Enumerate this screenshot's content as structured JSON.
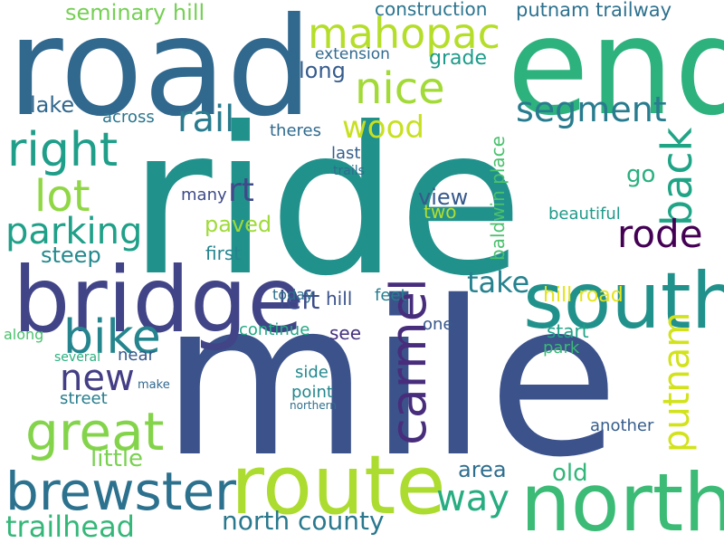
{
  "words": [
    {
      "text": "ride",
      "color": "#21918c",
      "rot": 0
    },
    {
      "text": "mile",
      "color": "#3b528b",
      "rot": 0
    },
    {
      "text": "road",
      "color": "#31688e",
      "rot": 0
    },
    {
      "text": "end",
      "color": "#2db27d",
      "rot": 0
    },
    {
      "text": "bridge",
      "color": "#414487",
      "rot": 0
    },
    {
      "text": "route",
      "color": "#addc30",
      "rot": 0
    },
    {
      "text": "north",
      "color": "#3bbb75",
      "rot": 0
    },
    {
      "text": "south",
      "color": "#21918c",
      "rot": 0
    },
    {
      "text": "brewster",
      "color": "#2c728e",
      "rot": 0
    },
    {
      "text": "carmel",
      "color": "#472d7b",
      "rot": -90
    },
    {
      "text": "great",
      "color": "#84d44b",
      "rot": 0
    },
    {
      "text": "mahopac",
      "color": "#b5de2b",
      "rot": 0
    },
    {
      "text": "nice",
      "color": "#a2da37",
      "rot": 0
    },
    {
      "text": "bike",
      "color": "#25858e",
      "rot": 0
    },
    {
      "text": "right",
      "color": "#1f9e89",
      "rot": 0
    },
    {
      "text": "lot",
      "color": "#8fd744",
      "rot": 0
    },
    {
      "text": "back",
      "color": "#20a486",
      "rot": -90
    },
    {
      "text": "putnam",
      "color": "#d2e21b",
      "rot": -90
    },
    {
      "text": "segment",
      "color": "#287c8e",
      "rot": 0
    },
    {
      "text": "way",
      "color": "#27ad81",
      "rot": 0
    },
    {
      "text": "rode",
      "color": "#440154",
      "rot": 0
    },
    {
      "text": "new",
      "color": "#433e85",
      "rot": 0
    },
    {
      "text": "rail",
      "color": "#297b8e",
      "rot": 0
    },
    {
      "text": "parking",
      "color": "#1fa088",
      "rot": 0
    },
    {
      "text": "trailhead",
      "color": "#35b779",
      "rot": 0
    },
    {
      "text": "north county",
      "color": "#2a788e",
      "rot": 0
    },
    {
      "text": "wood",
      "color": "#c8e020",
      "rot": 0
    },
    {
      "text": "take",
      "color": "#26828e",
      "rot": 0
    },
    {
      "text": "rt",
      "color": "#3e4a89",
      "rot": 0
    },
    {
      "text": "seminary hill",
      "color": "#75d054",
      "rot": 0
    },
    {
      "text": "construction",
      "color": "#2b748e",
      "rot": 0
    },
    {
      "text": "putnam trailway",
      "color": "#2c718e",
      "rot": 0
    },
    {
      "text": "left",
      "color": "#3d4d8a",
      "rot": 0
    },
    {
      "text": "little",
      "color": "#7ad151",
      "rot": 0
    },
    {
      "text": "baldwin place",
      "color": "#4ac16d",
      "rot": -90
    },
    {
      "text": "hill road",
      "color": "#e5e419",
      "rot": 0
    },
    {
      "text": "lake",
      "color": "#31688e",
      "rot": 0
    },
    {
      "text": "long",
      "color": "#365c8d",
      "rot": 0
    },
    {
      "text": "steep",
      "color": "#23898e",
      "rot": 0
    },
    {
      "text": "paved",
      "color": "#a0da39",
      "rot": 0
    },
    {
      "text": "view",
      "color": "#375a8c",
      "rot": 0
    },
    {
      "text": "area",
      "color": "#2e6e8e",
      "rot": 0
    },
    {
      "text": "old",
      "color": "#32b67a",
      "rot": 0
    },
    {
      "text": "grade",
      "color": "#1e9b8a",
      "rot": 0
    },
    {
      "text": "two",
      "color": "#b2dd2d",
      "rot": 0
    },
    {
      "text": "go",
      "color": "#2ab07f",
      "rot": 0
    },
    {
      "text": "first",
      "color": "#25848e",
      "rot": 0
    },
    {
      "text": "across",
      "color": "#2a768e",
      "rot": 0
    },
    {
      "text": "many",
      "color": "#3e4a89",
      "rot": 0
    },
    {
      "text": "theres",
      "color": "#306a8e",
      "rot": 0
    },
    {
      "text": "extension",
      "color": "#306a8e",
      "rot": 0
    },
    {
      "text": "beautiful",
      "color": "#1f9a8a",
      "rot": 0
    },
    {
      "text": "continue",
      "color": "#23a983",
      "rot": 0
    },
    {
      "text": "see",
      "color": "#46327e",
      "rot": 0
    },
    {
      "text": "start",
      "color": "#1fa287",
      "rot": 0
    },
    {
      "text": "park",
      "color": "#3aba76",
      "rot": 0
    },
    {
      "text": "another",
      "color": "#365d8d",
      "rot": 0
    },
    {
      "text": "feet",
      "color": "#287d8e",
      "rot": 0
    },
    {
      "text": "hill",
      "color": "#3b528b",
      "rot": 0
    },
    {
      "text": "today",
      "color": "#2e6f8e",
      "rot": 0
    },
    {
      "text": "last",
      "color": "#355f8d",
      "rot": 0
    },
    {
      "text": "trails",
      "color": "#2e6e8e",
      "rot": 0
    },
    {
      "text": "one",
      "color": "#38588c",
      "rot": 0
    },
    {
      "text": "side",
      "color": "#23898e",
      "rot": 0
    },
    {
      "text": "point",
      "color": "#24868e",
      "rot": 0
    },
    {
      "text": "near",
      "color": "#38588c",
      "rot": 0
    },
    {
      "text": "along",
      "color": "#4ac16d",
      "rot": 0
    },
    {
      "text": "several",
      "color": "#2ab07f",
      "rot": 0
    },
    {
      "text": "street",
      "color": "#287d8e",
      "rot": 0
    },
    {
      "text": "northern",
      "color": "#2e6e8e",
      "rot": 0
    },
    {
      "text": "make",
      "color": "#31688e",
      "rot": 0
    }
  ]
}
